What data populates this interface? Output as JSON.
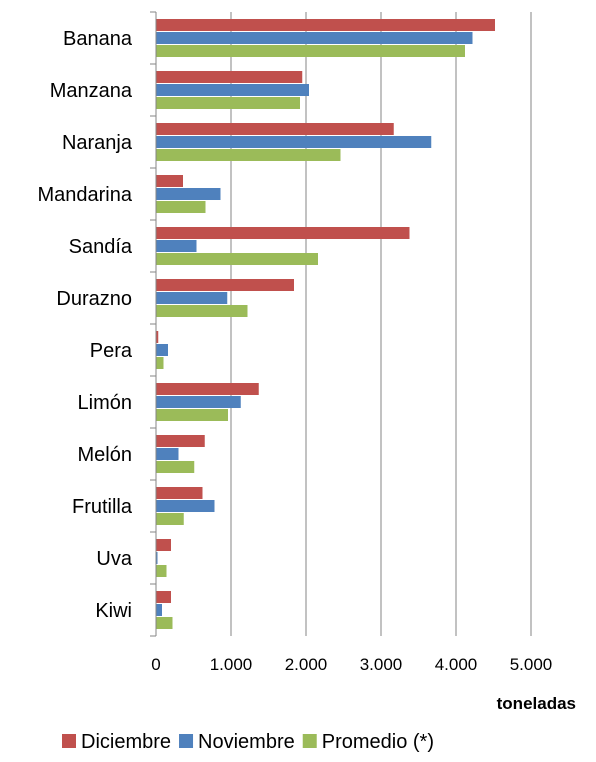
{
  "chart_data": {
    "type": "bar",
    "orientation": "horizontal",
    "categories": [
      "Banana",
      "Manzana",
      "Naranja",
      "Mandarina",
      "Sandía",
      "Durazno",
      "Pera",
      "Limón",
      "Melón",
      "Frutilla",
      "Uva",
      "Kiwi"
    ],
    "series": [
      {
        "name": "Diciembre",
        "color": "#c0504d",
        "values": [
          4520,
          1950,
          3170,
          360,
          3380,
          1840,
          30,
          1370,
          650,
          620,
          200,
          200
        ]
      },
      {
        "name": "Noviembre",
        "color": "#4f81bd",
        "values": [
          4220,
          2040,
          3670,
          860,
          540,
          950,
          160,
          1130,
          300,
          780,
          20,
          80
        ]
      },
      {
        "name": "Promedio (*)",
        "color": "#9bbb59",
        "values": [
          4120,
          1920,
          2460,
          660,
          2160,
          1220,
          100,
          960,
          510,
          370,
          140,
          220
        ]
      }
    ],
    "xlabel": "toneladas",
    "xlim": [
      0,
      5000
    ],
    "xticks": [
      0,
      1000,
      2000,
      3000,
      4000,
      5000
    ],
    "xtick_labels": [
      "0",
      "1.000",
      "2.000",
      "3.000",
      "4.000",
      "5.000"
    ],
    "grid": true,
    "legend_position": "bottom"
  }
}
